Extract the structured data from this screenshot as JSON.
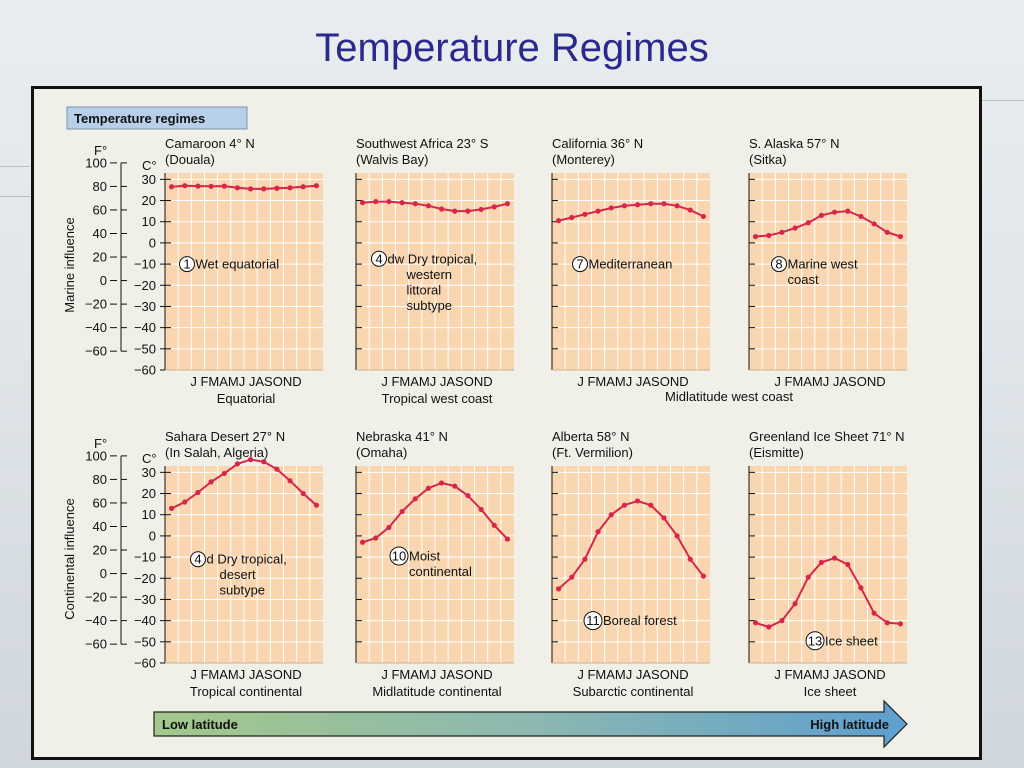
{
  "slide": {
    "title": "Temperature Regimes"
  },
  "figure": {
    "header": "Temperature regimes",
    "units": {
      "f": "F°",
      "c": "C°"
    },
    "row_labels": {
      "top": "Marine influence",
      "bottom": "Continental influence"
    },
    "f_ticks": [
      "100",
      "80",
      "60",
      "40",
      "20",
      "0",
      "−20",
      "−40",
      "−60"
    ],
    "c_ticks": [
      "30",
      "20",
      "10",
      "0",
      "−10",
      "−20",
      "−30",
      "−40",
      "−50",
      "−60"
    ],
    "arrow": {
      "left": "Low latitude",
      "right": "High latitude"
    },
    "group_labels": {
      "midlatitude_west_coast": "Midlatitude west coast"
    }
  },
  "chart_data": [
    {
      "type": "line",
      "title": "Camaroon 4° N",
      "subtitle": "(Douala)",
      "x_label": "J FMAMJ JASOND",
      "region": "Equatorial",
      "regime_number": "1",
      "regime_label": [
        "Wet equatorial"
      ],
      "ylim": [
        -60,
        33
      ],
      "unit": "°C",
      "values": [
        26.5,
        27,
        26.8,
        26.7,
        26.8,
        26,
        25.5,
        25.5,
        25.8,
        26,
        26.5,
        27
      ]
    },
    {
      "type": "line",
      "title": "Southwest Africa 23° S",
      "subtitle": "(Walvis Bay)",
      "x_label": "J FMAMJ JASOND",
      "region": "Tropical west coast",
      "regime_number": "4",
      "regime_label": [
        "dw Dry tropical,",
        "western",
        "littoral",
        "subtype"
      ],
      "ylim": [
        -60,
        33
      ],
      "unit": "°C",
      "values": [
        19,
        19.5,
        19.5,
        19,
        18.5,
        17.5,
        16,
        15,
        15,
        15.8,
        17,
        18.5
      ]
    },
    {
      "type": "line",
      "title": "California 36° N",
      "subtitle": "(Monterey)",
      "x_label": "J FMAMJ JASOND",
      "region": "",
      "regime_number": "7",
      "regime_label": [
        "Mediterranean"
      ],
      "ylim": [
        -60,
        33
      ],
      "unit": "°C",
      "values": [
        10.5,
        12,
        13.5,
        15,
        16.5,
        17.5,
        18,
        18.5,
        18.5,
        17.5,
        15.5,
        12.5
      ]
    },
    {
      "type": "line",
      "title": "S. Alaska 57° N",
      "subtitle": "(Sitka)",
      "x_label": "J FMAMJ JASOND",
      "region": "",
      "regime_number": "8",
      "regime_label": [
        "Marine west",
        "coast"
      ],
      "ylim": [
        -60,
        33
      ],
      "unit": "°C",
      "values": [
        3,
        3.5,
        5,
        7,
        9.5,
        13,
        14.5,
        15,
        12.5,
        9,
        5,
        3
      ]
    },
    {
      "type": "line",
      "title": "Sahara Desert 27° N",
      "subtitle": "(In Salah, Algeria)",
      "x_label": "J FMAMJ JASOND",
      "region": "Tropical continental",
      "regime_number": "4",
      "regime_label": [
        "d Dry tropical,",
        "desert",
        "subtype"
      ],
      "ylim": [
        -60,
        33
      ],
      "unit": "°C",
      "values": [
        13,
        16,
        20.5,
        25.5,
        29.5,
        34,
        36,
        35,
        31.5,
        26,
        20,
        14.5
      ]
    },
    {
      "type": "line",
      "title": "Nebraska 41° N",
      "subtitle": "(Omaha)",
      "x_label": "J FMAMJ JASOND",
      "region": "Midlatitude continental",
      "regime_number": "10",
      "regime_label": [
        "Moist",
        "continental"
      ],
      "ylim": [
        -60,
        33
      ],
      "unit": "°C",
      "values": [
        -3,
        -1,
        4,
        11.5,
        17.5,
        22.5,
        25,
        23.5,
        19,
        12.5,
        5,
        -1.5
      ]
    },
    {
      "type": "line",
      "title": "Alberta 58° N",
      "subtitle": "(Ft. Vermilion)",
      "x_label": "J FMAMJ JASOND",
      "region": "Subarctic continental",
      "regime_number": "11",
      "regime_label": [
        "Boreal forest"
      ],
      "ylim": [
        -60,
        33
      ],
      "unit": "°C",
      "values": [
        -25,
        -19.5,
        -11,
        2,
        10,
        14.5,
        16.5,
        14.5,
        8.5,
        0,
        -11,
        -19
      ]
    },
    {
      "type": "line",
      "title": "Greenland Ice Sheet 71° N",
      "subtitle": "(Eismitte)",
      "x_label": "J FMAMJ JASOND",
      "region": "Ice sheet",
      "regime_number": "13",
      "regime_label": [
        "Ice sheet"
      ],
      "ylim": [
        -60,
        33
      ],
      "unit": "°C",
      "values": [
        -41,
        -43,
        -40,
        -32,
        -19.5,
        -12.5,
        -10.5,
        -13.5,
        -24.5,
        -36.5,
        -41,
        -41.5
      ]
    }
  ]
}
